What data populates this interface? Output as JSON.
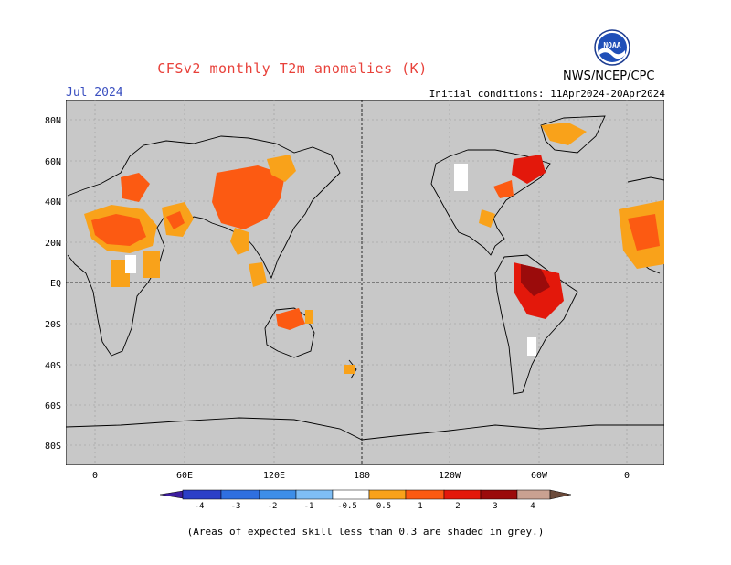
{
  "header": {
    "title": "CFSv2 monthly T2m anomalies (K)",
    "valid_month": "Jul 2024",
    "initial_conditions": "Initial conditions: 11Apr2024-20Apr2024",
    "agency": "NWS/NCEP/CPC"
  },
  "logo": {
    "icon": "noaa-logo-icon",
    "text": "NOAA"
  },
  "map": {
    "lat_labels": [
      "80N",
      "60N",
      "40N",
      "20N",
      "EQ",
      "20S",
      "40S",
      "60S",
      "80S"
    ],
    "lon_labels": [
      "0",
      "60E",
      "120E",
      "180",
      "120W",
      "60W",
      "0"
    ],
    "background_color": "#c8c8c8"
  },
  "colorbar": {
    "labels": [
      "-4",
      "-3",
      "-2",
      "-1",
      "-0.5",
      "0.5",
      "1",
      "2",
      "3",
      "4"
    ],
    "colors": [
      "#3d1d9e",
      "#2b3fc7",
      "#2f6fe0",
      "#4a9ff0",
      "#7fbef5",
      "#ffffff",
      "#f9a21a",
      "#fc5a12",
      "#e3180b",
      "#9b0b0b",
      "#c9a191",
      "#6b4a3a"
    ]
  },
  "footer": {
    "note": "(Areas of expected skill less than 0.3 are shaded in grey.)"
  }
}
